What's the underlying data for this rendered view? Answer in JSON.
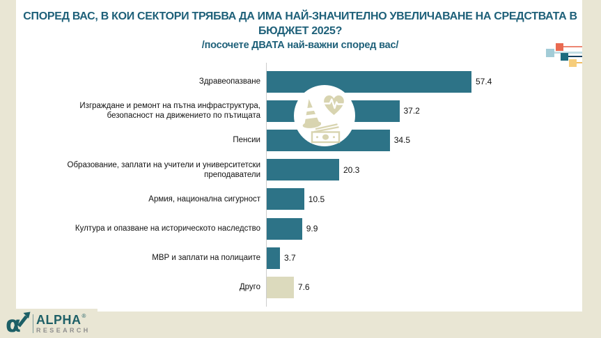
{
  "page": {
    "background": "#ffffff",
    "frame_color": "#e9e6d4"
  },
  "header": {
    "title": "СПОРЕД ВАС, В КОИ СЕКТОРИ ТРЯБВА ДА ИМА НАЙ-ЗНАЧИТЕЛНО УВЕЛИЧАВАНЕ НА СРЕДСТВАТА В БЮДЖЕТ 2025?",
    "subtitle": "/посочете ДВАТА най-важни според вас/",
    "title_color": "#1e6079"
  },
  "chart_data": {
    "type": "bar",
    "orientation": "horizontal",
    "categories": [
      "Здравеопазване",
      "Изграждане и ремонт на пътна инфраструктура, безопасност на движението по пътищата",
      "Пенсии",
      "Образование, заплати на учители и университетски преподаватели",
      "Армия, национална сигурност",
      "Култура и опазване на историческото наследство",
      "МВР и заплати на полицаите",
      "Друго"
    ],
    "values": [
      57.4,
      37.2,
      34.5,
      20.3,
      10.5,
      9.9,
      3.7,
      7.6
    ],
    "bar_colors": [
      "#2d7387",
      "#2d7387",
      "#2d7387",
      "#2d7387",
      "#2d7387",
      "#2d7387",
      "#2d7387",
      "#dcdabd"
    ],
    "default_bar_color": "#2d7387",
    "other_bar_color": "#dcdabd",
    "value_label_color": "#111111",
    "xlim": [
      0,
      65
    ],
    "grid": false,
    "legend": "none",
    "value_labels_shown": true,
    "axis_line_color": "#cccccc"
  },
  "overlay": {
    "icon_color": "#d8d4b0",
    "icons": [
      "traffic-cone-icon",
      "heartbeat-icon",
      "banknote-icon"
    ]
  },
  "decor_squares": [
    {
      "sq_color": "#e96a51",
      "line_color": "#ec8672",
      "sq_x": 23,
      "sq_y": 7,
      "sq_size": 11,
      "line_y": 11,
      "line_h": 2
    },
    {
      "sq_color": "#a3ccd7",
      "line_color": "#c2dde4",
      "sq_x": 9,
      "sq_y": 15,
      "sq_size": 12,
      "line_y": 19,
      "line_h": 3
    },
    {
      "sq_color": "#1d6b7e",
      "line_color": "#17405f",
      "sq_x": 30,
      "sq_y": 21,
      "sq_size": 11,
      "line_y": 25,
      "line_h": 2
    },
    {
      "sq_color": "#f6cd7b",
      "line_color": "#f0bd62",
      "sq_x": 42,
      "sq_y": 30,
      "sq_size": 11,
      "line_y": 34,
      "line_h": 2
    }
  ],
  "logo": {
    "brand": "ALPHA",
    "registered": "®",
    "sub": "RESEARCH"
  }
}
